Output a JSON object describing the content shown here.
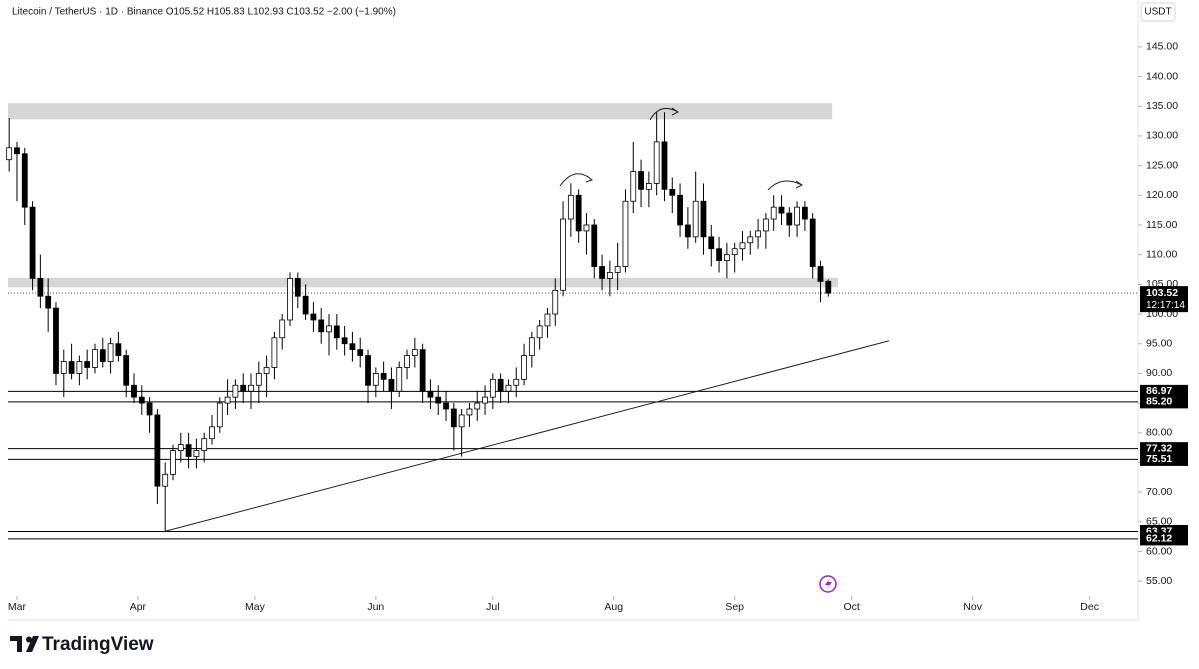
{
  "chart_data": {
    "type": "candlestick",
    "title": "Litecoin / TetherUS · 1D · Binance  O105.52  H105.83  L102.93  C103.52  −2.00 (−1.90%)",
    "currency": "USDT",
    "brand": "TradingView",
    "countdown": "12:17:14",
    "last_price": 103.52,
    "up_color": "#ffffff",
    "down_color": "#000000",
    "wick_color": "#000000",
    "xlim": [
      -2.3,
      287.4
    ],
    "xticks": [
      {
        "value": 0,
        "label": "Mar"
      },
      {
        "value": 31,
        "label": "Apr"
      },
      {
        "value": 61,
        "label": "May"
      },
      {
        "value": 92,
        "label": "Jun"
      },
      {
        "value": 122,
        "label": "Jul"
      },
      {
        "value": 153,
        "label": "Aug"
      },
      {
        "value": 184,
        "label": "Sep"
      },
      {
        "value": 214,
        "label": "Oct"
      },
      {
        "value": 245,
        "label": "Nov"
      },
      {
        "value": 275,
        "label": "Dec"
      }
    ],
    "ylim": [
      52.5,
      152.9
    ],
    "yticks": [
      {
        "value": 55,
        "label": "55.00"
      },
      {
        "value": 60,
        "label": "60.00"
      },
      {
        "value": 65,
        "label": "65.00"
      },
      {
        "value": 70,
        "label": "70.00"
      },
      {
        "value": 75,
        "label": "75.00"
      },
      {
        "value": 80,
        "label": "80.00"
      },
      {
        "value": 85,
        "label": "85.00"
      },
      {
        "value": 90,
        "label": "90.00"
      },
      {
        "value": 95,
        "label": "95.00"
      },
      {
        "value": 100,
        "label": "100.00"
      },
      {
        "value": 105,
        "label": "105.00"
      },
      {
        "value": 110,
        "label": "110.00"
      },
      {
        "value": 115,
        "label": "115.00"
      },
      {
        "value": 120,
        "label": "120.00"
      },
      {
        "value": 125,
        "label": "125.00"
      },
      {
        "value": 130,
        "label": "130.00"
      },
      {
        "value": 135,
        "label": "135.00"
      },
      {
        "value": 140,
        "label": "140.00"
      },
      {
        "value": 145,
        "label": "145.00"
      }
    ],
    "levels": [
      86.97,
      {
        "value": 85.2,
        "label": "85.20"
      },
      77.32,
      75.51,
      63.37,
      62.12
    ],
    "zones": [
      {
        "from": 132.8,
        "to": 135.5,
        "end": 209
      },
      {
        "from": 104.5,
        "to": 106.1,
        "end": 210.5
      }
    ],
    "trendline": {
      "x": [
        37.4,
        223.6
      ],
      "y": [
        63.3,
        95.5
      ]
    },
    "x": [
      -2,
      0,
      2,
      4,
      6,
      8,
      10,
      12,
      14,
      16,
      18,
      20,
      22,
      24,
      26,
      28,
      30,
      32,
      34,
      36,
      38,
      40,
      42,
      44,
      46,
      48,
      50,
      52,
      54,
      56,
      58,
      60,
      62,
      64,
      66,
      68,
      70,
      72,
      74,
      76,
      78,
      80,
      82,
      84,
      86,
      88,
      90,
      92,
      94,
      96,
      98,
      100,
      102,
      104,
      106,
      108,
      110,
      112,
      114,
      116,
      118,
      120,
      122,
      124,
      126,
      128,
      130,
      132,
      134,
      136,
      138,
      140,
      142,
      144,
      146,
      148,
      150,
      152,
      154,
      156,
      158,
      160,
      162,
      164,
      166,
      168,
      170,
      172,
      174,
      176,
      178,
      180,
      182,
      184,
      186,
      188,
      190,
      192,
      194,
      196,
      198,
      200,
      202,
      204,
      206,
      208
    ],
    "ohlc": [
      [
        126,
        133,
        124,
        128
      ],
      [
        128,
        129,
        119,
        127
      ],
      [
        127,
        128,
        115,
        118
      ],
      [
        118,
        119,
        104,
        106
      ],
      [
        106,
        110,
        101,
        103
      ],
      [
        103,
        106,
        97,
        101
      ],
      [
        101,
        102,
        88,
        90
      ],
      [
        90,
        94,
        86,
        92
      ],
      [
        92,
        95,
        89,
        90
      ],
      [
        90,
        93,
        88,
        92
      ],
      [
        92,
        94,
        89,
        91
      ],
      [
        91,
        95,
        90,
        94
      ],
      [
        94,
        96,
        91,
        92
      ],
      [
        92,
        96,
        90,
        95
      ],
      [
        95,
        97,
        92,
        93
      ],
      [
        93,
        94,
        86,
        88
      ],
      [
        88,
        90,
        85,
        86
      ],
      [
        86,
        88,
        83,
        85
      ],
      [
        85,
        86,
        80,
        83
      ],
      [
        83,
        84,
        68,
        71
      ],
      [
        71,
        75,
        63.4,
        73
      ],
      [
        73,
        78,
        72,
        77
      ],
      [
        77,
        80,
        75,
        78
      ],
      [
        78,
        80,
        74,
        76
      ],
      [
        76,
        79,
        74,
        77
      ],
      [
        77,
        80,
        75,
        79
      ],
      [
        79,
        83,
        78,
        81
      ],
      [
        81,
        86,
        80,
        85
      ],
      [
        85,
        89,
        83,
        86
      ],
      [
        86,
        89,
        84,
        88
      ],
      [
        88,
        90,
        85,
        87
      ],
      [
        87,
        90,
        84,
        88
      ],
      [
        88,
        92,
        85,
        90
      ],
      [
        90,
        93,
        86,
        91
      ],
      [
        91,
        97,
        89,
        96
      ],
      [
        96,
        100,
        94,
        99
      ],
      [
        99,
        107,
        98,
        106
      ],
      [
        106,
        107,
        101,
        103
      ],
      [
        103,
        105,
        99,
        100
      ],
      [
        100,
        102,
        97,
        99
      ],
      [
        99,
        101,
        95,
        97
      ],
      [
        97,
        100,
        93,
        98
      ],
      [
        98,
        100,
        94,
        96
      ],
      [
        96,
        98,
        93,
        95
      ],
      [
        95,
        97,
        92,
        94
      ],
      [
        94,
        96,
        91,
        93
      ],
      [
        93,
        94,
        85,
        88
      ],
      [
        88,
        91,
        86,
        90
      ],
      [
        90,
        92,
        87,
        89
      ],
      [
        89,
        91,
        84,
        87
      ],
      [
        87,
        92,
        86,
        91
      ],
      [
        91,
        94,
        89,
        93
      ],
      [
        93,
        96,
        91,
        94
      ],
      [
        94,
        95,
        85,
        87
      ],
      [
        87,
        89,
        84,
        86
      ],
      [
        86,
        88,
        83,
        85
      ],
      [
        85,
        87,
        82,
        84
      ],
      [
        84,
        85,
        77,
        81
      ],
      [
        81,
        84,
        76,
        83
      ],
      [
        83,
        85,
        81,
        84
      ],
      [
        84,
        87,
        82,
        85
      ],
      [
        85,
        88,
        83,
        86
      ],
      [
        86,
        90,
        84,
        89
      ],
      [
        89,
        90,
        85,
        87
      ],
      [
        87,
        89,
        85,
        88
      ],
      [
        88,
        91,
        86,
        89
      ],
      [
        89,
        95,
        88,
        93
      ],
      [
        93,
        97,
        91,
        96
      ],
      [
        96,
        99,
        94,
        98
      ],
      [
        98,
        101,
        96,
        100
      ],
      [
        100,
        106,
        98,
        104
      ],
      [
        104,
        119,
        103,
        116
      ],
      [
        116,
        122,
        113,
        120
      ],
      [
        120,
        121,
        112,
        114
      ],
      [
        114,
        117,
        110,
        115
      ],
      [
        115,
        116,
        106,
        108
      ],
      [
        108,
        110,
        104,
        106
      ],
      [
        106,
        109,
        103,
        107
      ],
      [
        107,
        112,
        104,
        108
      ],
      [
        108,
        121,
        107,
        119
      ],
      [
        119,
        129,
        117,
        124
      ],
      [
        124,
        126,
        118,
        121
      ],
      [
        121,
        124,
        118,
        122
      ],
      [
        122,
        134,
        120,
        129
      ],
      [
        129,
        134,
        119,
        121
      ],
      [
        121,
        123,
        117,
        120
      ],
      [
        120,
        122,
        113,
        115
      ],
      [
        115,
        118,
        111,
        113
      ],
      [
        113,
        124,
        112,
        119
      ],
      [
        119,
        122,
        110,
        113
      ],
      [
        113,
        115,
        108,
        111
      ],
      [
        111,
        113,
        107,
        109
      ],
      [
        109,
        112,
        106,
        110
      ],
      [
        110,
        112,
        107,
        111
      ],
      [
        111,
        114,
        109,
        112
      ],
      [
        112,
        114,
        110,
        113
      ],
      [
        113,
        116,
        111,
        114
      ],
      [
        114,
        117,
        111,
        116
      ],
      [
        116,
        120,
        114,
        118
      ],
      [
        118,
        120,
        115,
        117
      ],
      [
        117,
        118,
        113,
        115
      ],
      [
        115,
        119,
        113,
        118
      ],
      [
        118,
        119,
        114,
        116
      ],
      [
        116,
        117,
        106,
        108
      ],
      [
        108,
        109,
        102,
        105.5
      ],
      [
        105.52,
        105.83,
        102.93,
        103.52
      ]
    ]
  }
}
